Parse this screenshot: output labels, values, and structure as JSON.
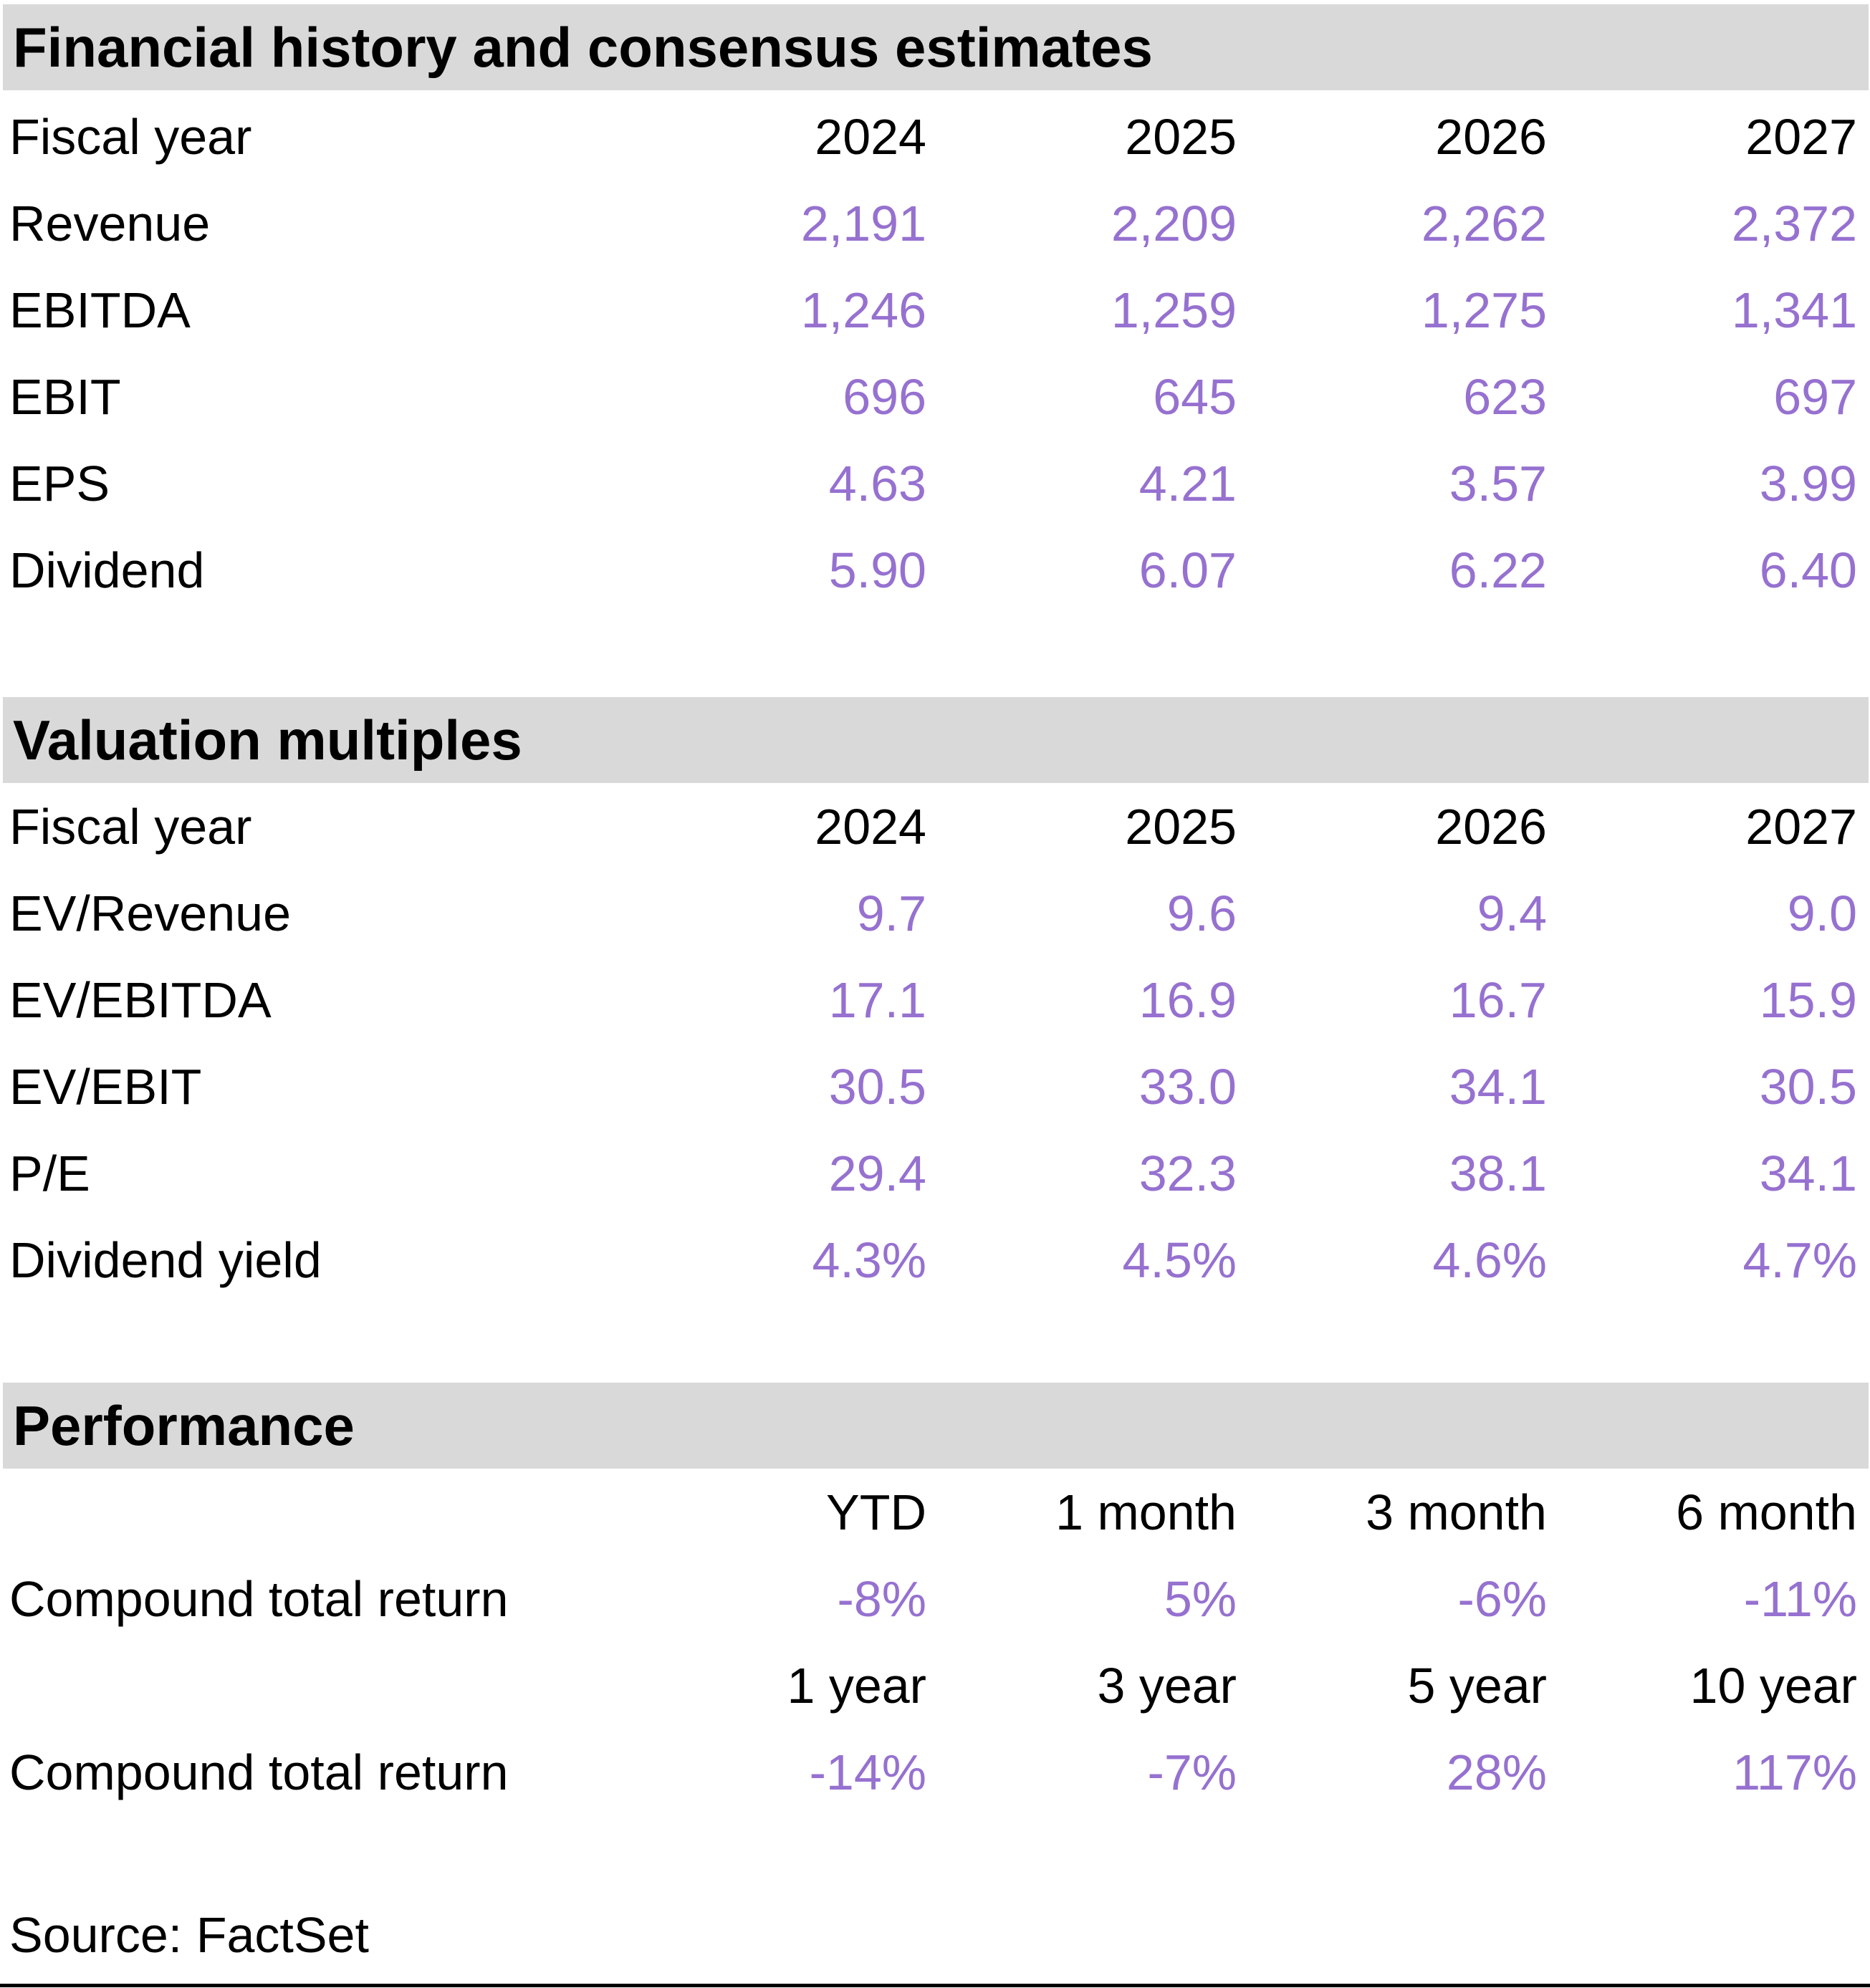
{
  "colors": {
    "accent_purple": "#9671D0",
    "section_header_bg": "#D9D9D9",
    "text_black": "#000000"
  },
  "sections": [
    {
      "title": "Financial history and consensus estimates",
      "header": {
        "label": "Fiscal year",
        "columns": [
          "2024",
          "2025",
          "2026",
          "2027"
        ]
      },
      "rows": [
        {
          "label": "Revenue",
          "values": [
            "2,191",
            "2,209",
            "2,262",
            "2,372"
          ]
        },
        {
          "label": "EBITDA",
          "values": [
            "1,246",
            "1,259",
            "1,275",
            "1,341"
          ]
        },
        {
          "label": "EBIT",
          "values": [
            "696",
            "645",
            "623",
            "697"
          ]
        },
        {
          "label": "EPS",
          "values": [
            "4.63",
            "4.21",
            "3.57",
            "3.99"
          ]
        },
        {
          "label": "Dividend",
          "values": [
            "5.90",
            "6.07",
            "6.22",
            "6.40"
          ]
        }
      ]
    },
    {
      "title": "Valuation multiples",
      "header": {
        "label": "Fiscal year",
        "columns": [
          "2024",
          "2025",
          "2026",
          "2027"
        ]
      },
      "rows": [
        {
          "label": "EV/Revenue",
          "values": [
            "9.7",
            "9.6",
            "9.4",
            "9.0"
          ]
        },
        {
          "label": "EV/EBITDA",
          "values": [
            "17.1",
            "16.9",
            "16.7",
            "15.9"
          ]
        },
        {
          "label": "EV/EBIT",
          "values": [
            "30.5",
            "33.0",
            "34.1",
            "30.5"
          ]
        },
        {
          "label": "P/E",
          "values": [
            "29.4",
            "32.3",
            "38.1",
            "34.1"
          ]
        },
        {
          "label": "Dividend yield",
          "values": [
            "4.3%",
            "4.5%",
            "4.6%",
            "4.7%"
          ]
        }
      ]
    },
    {
      "title": "Performance",
      "groups": [
        {
          "columns": [
            "YTD",
            "1 month",
            "3 month",
            "6 month"
          ],
          "row_label": "Compound total return",
          "values": [
            "-8%",
            "5%",
            "-6%",
            "-11%"
          ]
        },
        {
          "columns": [
            "1 year",
            "3 year",
            "5 year",
            "10 year"
          ],
          "row_label": "Compound total return",
          "values": [
            "-14%",
            "-7%",
            "28%",
            "117%"
          ]
        }
      ]
    }
  ],
  "footer": {
    "source": "Source: FactSet"
  },
  "chart_data": [
    {
      "type": "table",
      "title": "Financial history and consensus estimates",
      "columns": [
        "Fiscal year",
        "2024",
        "2025",
        "2026",
        "2027"
      ],
      "rows": [
        [
          "Revenue",
          2191,
          2209,
          2262,
          2372
        ],
        [
          "EBITDA",
          1246,
          1259,
          1275,
          1341
        ],
        [
          "EBIT",
          696,
          645,
          623,
          697
        ],
        [
          "EPS",
          4.63,
          4.21,
          3.57,
          3.99
        ],
        [
          "Dividend",
          5.9,
          6.07,
          6.22,
          6.4
        ]
      ]
    },
    {
      "type": "table",
      "title": "Valuation multiples",
      "columns": [
        "Fiscal year",
        "2024",
        "2025",
        "2026",
        "2027"
      ],
      "rows": [
        [
          "EV/Revenue",
          9.7,
          9.6,
          9.4,
          9.0
        ],
        [
          "EV/EBITDA",
          17.1,
          16.9,
          16.7,
          15.9
        ],
        [
          "EV/EBIT",
          30.5,
          33.0,
          34.1,
          30.5
        ],
        [
          "P/E",
          29.4,
          32.3,
          38.1,
          34.1
        ],
        [
          "Dividend yield",
          "4.3%",
          "4.5%",
          "4.6%",
          "4.7%"
        ]
      ]
    },
    {
      "type": "table",
      "title": "Performance",
      "sub_tables": [
        {
          "columns": [
            "",
            "YTD",
            "1 month",
            "3 month",
            "6 month"
          ],
          "rows": [
            [
              "Compound total return",
              "-8%",
              "5%",
              "-6%",
              "-11%"
            ]
          ]
        },
        {
          "columns": [
            "",
            "1 year",
            "3 year",
            "5 year",
            "10 year"
          ],
          "rows": [
            [
              "Compound total return",
              "-14%",
              "-7%",
              "28%",
              "117%"
            ]
          ]
        }
      ]
    }
  ]
}
